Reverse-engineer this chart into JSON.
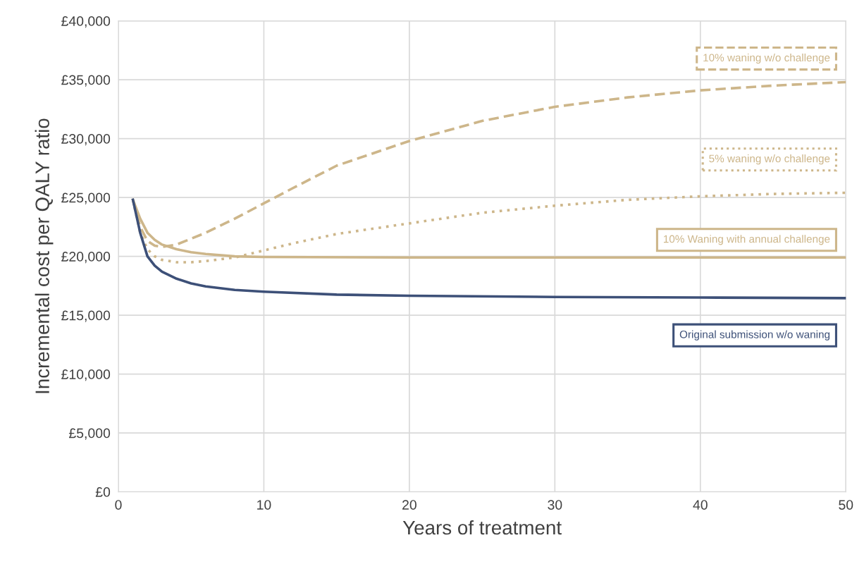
{
  "chart_data": {
    "type": "line",
    "xlabel": "Years of treatment",
    "ylabel": "Incremental cost per QALY ratio",
    "xlim": [
      0,
      50
    ],
    "xticks": [
      0,
      10,
      20,
      30,
      40,
      50
    ],
    "ylim": [
      0,
      40000
    ],
    "yticks": [
      {
        "value": 0,
        "label": "£0"
      },
      {
        "value": 5000,
        "label": "£5,000"
      },
      {
        "value": 10000,
        "label": "£10,000"
      },
      {
        "value": 15000,
        "label": "£15,000"
      },
      {
        "value": 20000,
        "label": "£20,000"
      },
      {
        "value": 25000,
        "label": "£25,000"
      },
      {
        "value": 30000,
        "label": "£30,000"
      },
      {
        "value": 35000,
        "label": "£35,000"
      },
      {
        "value": 40000,
        "label": "£40,000"
      }
    ],
    "grid": true,
    "series": [
      {
        "name": "10% waning w/o challenge",
        "color": "#cdb68a",
        "line_style": "dashed",
        "x": [
          1,
          1.5,
          2,
          2.5,
          3,
          4,
          5,
          6,
          7,
          8,
          10,
          12,
          15,
          20,
          25,
          30,
          35,
          40,
          45,
          50
        ],
        "values": [
          24800,
          22500,
          21300,
          20900,
          20800,
          21000,
          21500,
          22000,
          22600,
          23200,
          24500,
          25800,
          27700,
          29800,
          31500,
          32700,
          33500,
          34100,
          34500,
          34800
        ]
      },
      {
        "name": "5% waning w/o challenge",
        "color": "#cdb68a",
        "line_style": "dotted",
        "x": [
          1,
          1.5,
          2,
          2.5,
          3,
          4,
          5,
          6,
          8,
          10,
          12,
          15,
          20,
          25,
          30,
          35,
          40,
          45,
          50
        ],
        "values": [
          24800,
          22000,
          20600,
          20000,
          19700,
          19500,
          19500,
          19600,
          19900,
          20500,
          21100,
          21900,
          22800,
          23700,
          24300,
          24800,
          25100,
          25300,
          25400
        ]
      },
      {
        "name": "10% Waning with annual challenge",
        "color": "#cdb68a",
        "line_style": "solid",
        "x": [
          1,
          1.5,
          2,
          2.5,
          3,
          4,
          5,
          6,
          8,
          10,
          20,
          30,
          40,
          50
        ],
        "values": [
          24800,
          23200,
          22000,
          21400,
          21000,
          20600,
          20350,
          20200,
          20000,
          19950,
          19900,
          19900,
          19900,
          19900
        ]
      },
      {
        "name": "Original submission w/o waning",
        "color": "#3d5078",
        "line_style": "solid",
        "x": [
          1,
          1.5,
          2,
          2.5,
          3,
          4,
          5,
          6,
          8,
          10,
          15,
          20,
          30,
          40,
          50
        ],
        "values": [
          24800,
          22000,
          20000,
          19200,
          18700,
          18100,
          17700,
          17450,
          17150,
          17000,
          16750,
          16650,
          16550,
          16500,
          16450
        ]
      }
    ]
  }
}
